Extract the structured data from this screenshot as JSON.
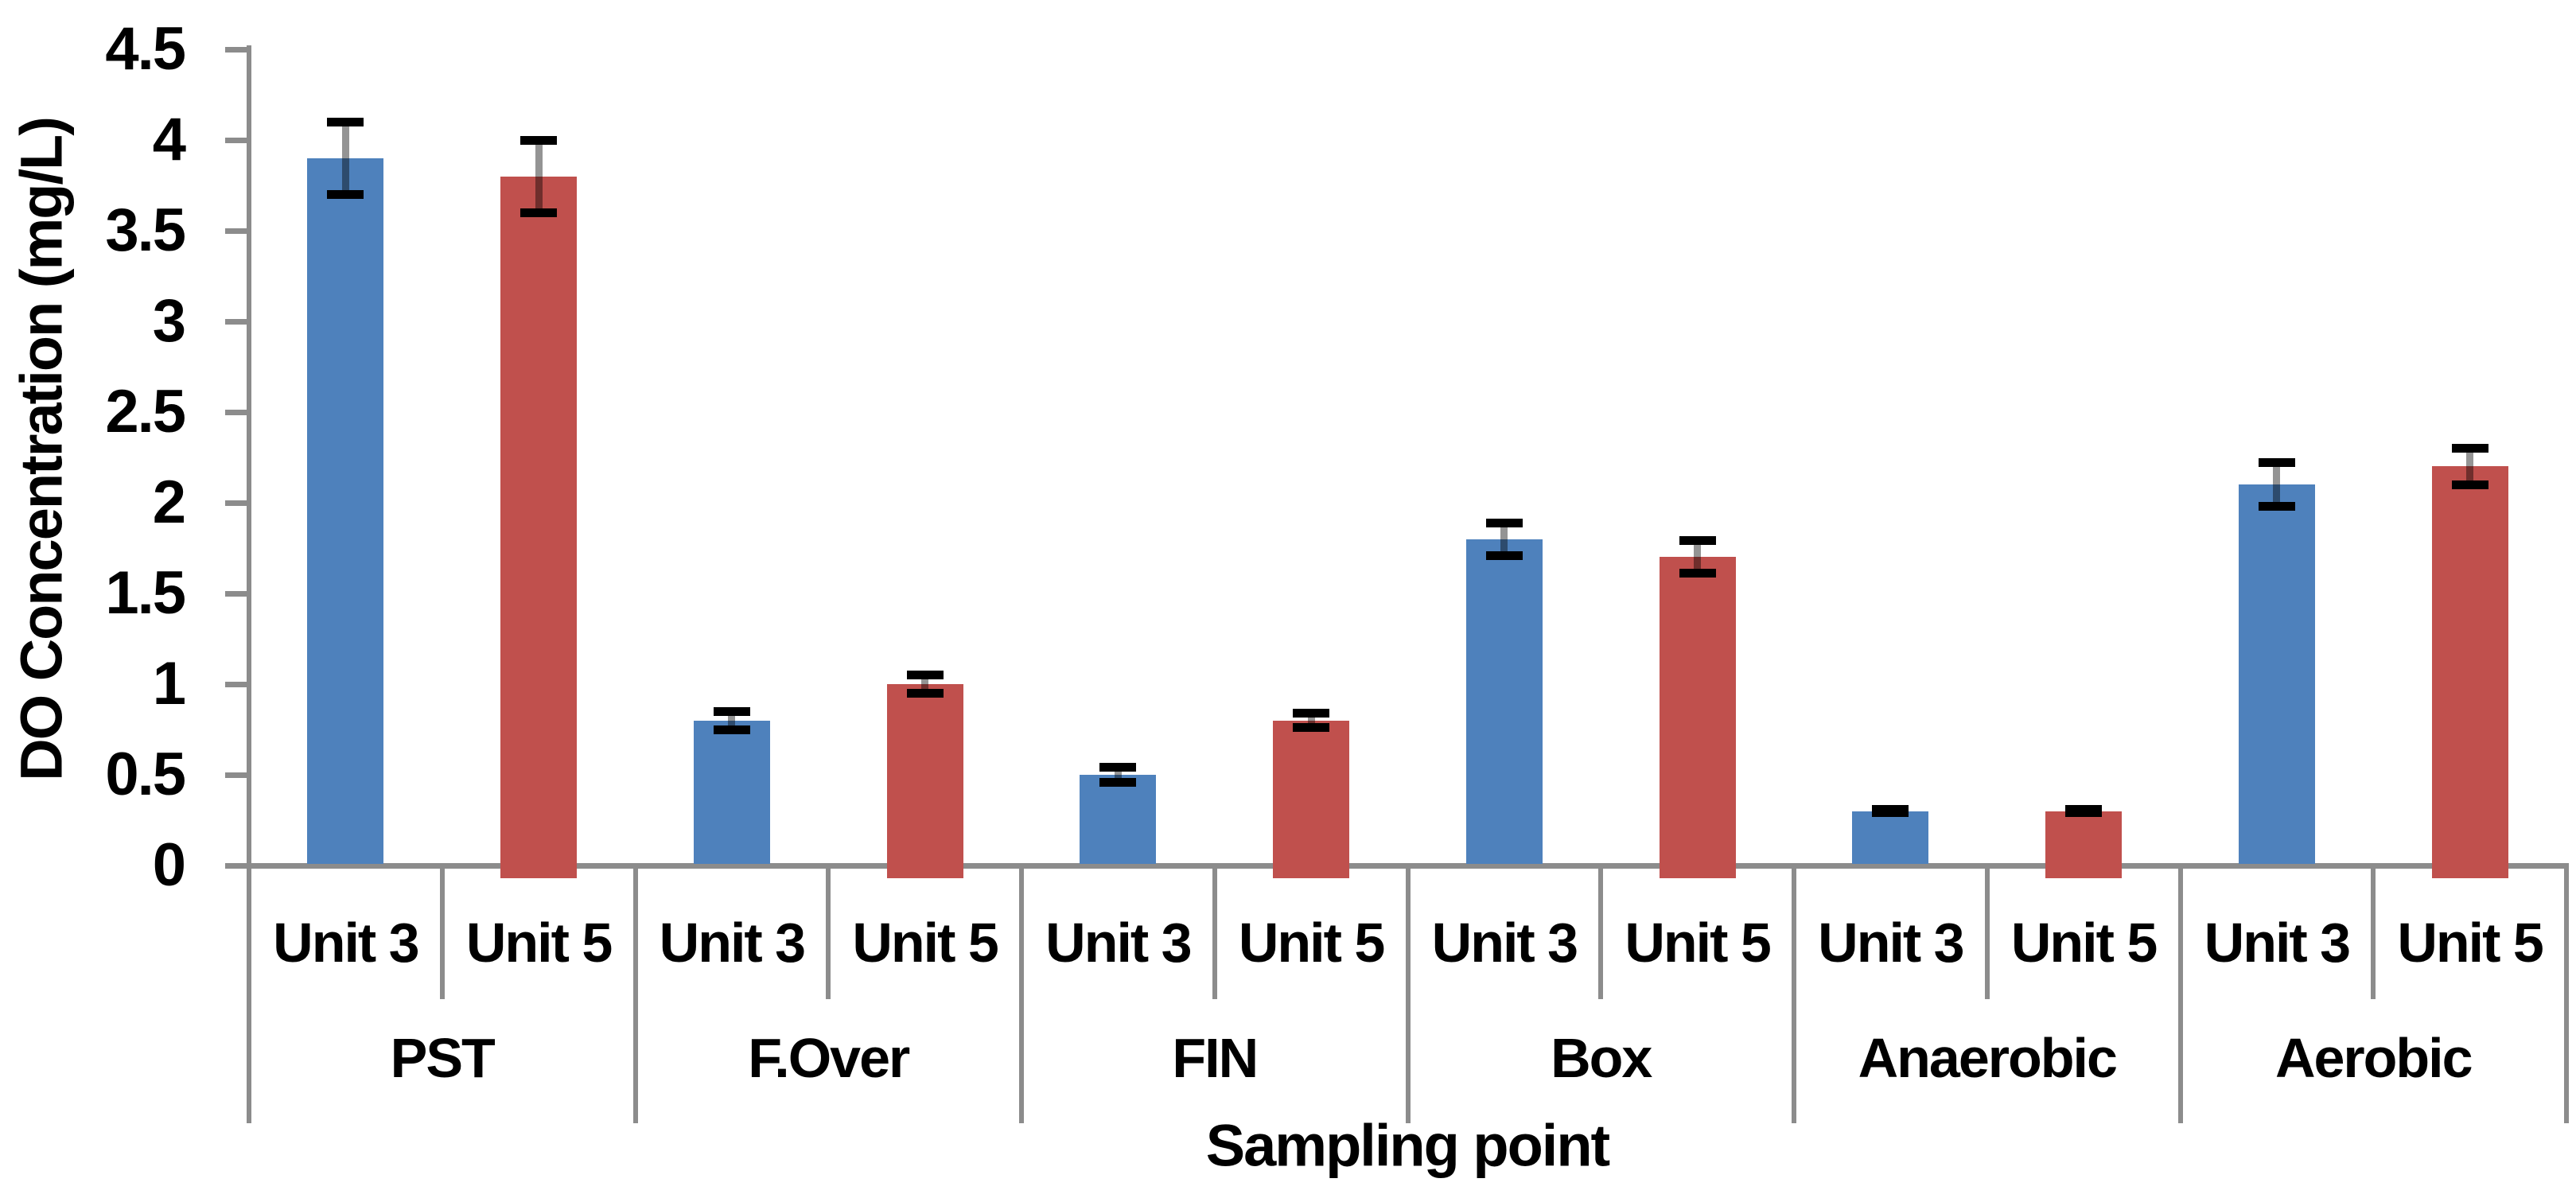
{
  "figure": {
    "kind": "grouped bar chart with error bars",
    "background_color": "#FFFFFF",
    "axis_color": "#8C8C8C",
    "error_bar_color": "#000000"
  },
  "chart_data": {
    "type": "bar",
    "title": "",
    "xlabel": "Sampling point",
    "ylabel": "DO Concentration (mg/L)",
    "ylim": [
      0,
      4.5
    ],
    "ytick_step": 0.5,
    "y_tick_labels": [
      "0",
      "0.5",
      "1",
      "1.5",
      "2",
      "2.5",
      "3",
      "3.5",
      "4",
      "4.5"
    ],
    "grid": false,
    "legend_position": "none",
    "categories": [
      "PST",
      "F.Over",
      "FIN",
      "Box",
      "Anaerobic",
      "Aerobic"
    ],
    "sub_categories": [
      "Unit 3",
      "Unit 5"
    ],
    "series": [
      {
        "name": "Unit 3",
        "color": "#4E81BC",
        "values": [
          3.9,
          0.8,
          0.5,
          1.8,
          0.3,
          2.1
        ],
        "errors": [
          0.2,
          0.05,
          0.04,
          0.09,
          0.01,
          0.12
        ]
      },
      {
        "name": "Unit 5",
        "color": "#C0504D",
        "values": [
          3.8,
          1.0,
          0.8,
          1.7,
          0.3,
          2.2
        ],
        "errors": [
          0.2,
          0.05,
          0.04,
          0.09,
          0.01,
          0.1
        ]
      }
    ]
  }
}
